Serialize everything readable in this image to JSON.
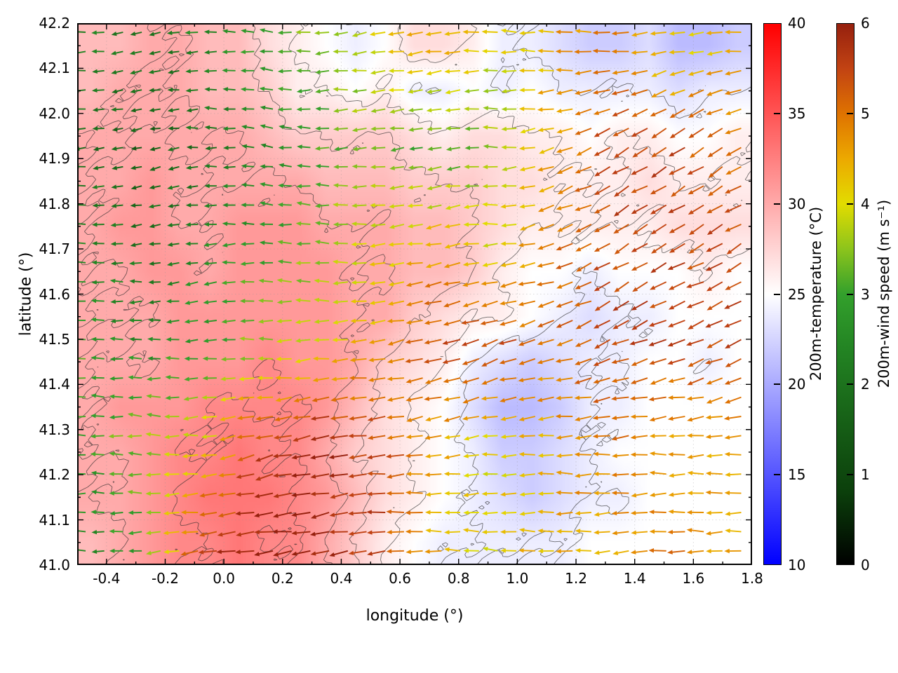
{
  "figure": {
    "background": "#ffffff",
    "title": ""
  },
  "axes": {
    "xlabel": "longitude (°)",
    "ylabel": "latitude (°)",
    "x_range": [
      -0.5,
      1.8
    ],
    "y_range": [
      41.0,
      42.2
    ],
    "x_tick_values": [
      -0.4,
      -0.2,
      0.0,
      0.2,
      0.4,
      0.6,
      0.8,
      1.0,
      1.2,
      1.4,
      1.6,
      1.8
    ],
    "x_tick_labels": [
      "-0.4",
      "-0.2",
      "0.0",
      "0.2",
      "0.4",
      "0.6",
      "0.8",
      "1.0",
      "1.2",
      "1.4",
      "1.6",
      "1.8"
    ],
    "y_tick_values": [
      41.0,
      41.1,
      41.2,
      41.3,
      41.4,
      41.5,
      41.6,
      41.7,
      41.8,
      41.9,
      42.0,
      42.1,
      42.2
    ],
    "y_tick_labels": [
      "41.0",
      "41.1",
      "41.2",
      "41.3",
      "41.4",
      "41.5",
      "41.6",
      "41.7",
      "41.8",
      "41.9",
      "42.0",
      "42.1",
      "42.2"
    ],
    "x_minor_step": 0.1,
    "y_minor_step": 0.05,
    "grid": true
  },
  "colorbars": [
    {
      "id": "temperature",
      "label": "200m-temperature (°C)",
      "units": "°C",
      "range": [
        10,
        40
      ],
      "ticks": [
        10,
        15,
        20,
        25,
        30,
        35,
        40
      ],
      "stops": [
        {
          "value": 10,
          "color": "#0000ff"
        },
        {
          "value": 25,
          "color": "#ffffff"
        },
        {
          "value": 40,
          "color": "#ff0000"
        }
      ]
    },
    {
      "id": "wind-speed",
      "label": "200m-wind speed (m s⁻¹)",
      "units": "m s⁻¹",
      "range": [
        0,
        6
      ],
      "ticks": [
        0,
        1,
        2,
        3,
        4,
        5,
        6
      ],
      "stops": [
        {
          "value": 0.0,
          "color": "#000000"
        },
        {
          "value": 0.8,
          "color": "#0b3f0b"
        },
        {
          "value": 1.6,
          "color": "#176117"
        },
        {
          "value": 2.4,
          "color": "#238423"
        },
        {
          "value": 3.0,
          "color": "#33a02c"
        },
        {
          "value": 3.5,
          "color": "#8cc41c"
        },
        {
          "value": 4.0,
          "color": "#e2dc00"
        },
        {
          "value": 4.5,
          "color": "#eca900"
        },
        {
          "value": 5.0,
          "color": "#df7300"
        },
        {
          "value": 5.5,
          "color": "#c24313"
        },
        {
          "value": 6.0,
          "color": "#96200e"
        }
      ]
    }
  ],
  "chart_data": {
    "type": "heatmap",
    "title": "",
    "xlabel": "longitude (°)",
    "ylabel": "latitude (°)",
    "x_range": [
      -0.5,
      1.8
    ],
    "y_range": [
      41.0,
      42.2
    ],
    "layers": [
      "200m temperature shaded field",
      "terrain/analysis contour lines",
      "200m wind vectors colored by speed"
    ],
    "contour_levels": [
      24,
      26,
      28,
      30,
      32
    ],
    "temperature_field": {
      "units": "°C",
      "lon_start": -0.45,
      "lon_step": 0.1,
      "lat_start": 42.15,
      "lat_step": -0.1,
      "values": [
        [
          29,
          29,
          30,
          30,
          29,
          29,
          27,
          26,
          25,
          24,
          25,
          27,
          27,
          26,
          24,
          24,
          23,
          22,
          22,
          23,
          21,
          21,
          22
        ],
        [
          29,
          30,
          30,
          30,
          29,
          29,
          28,
          26,
          26,
          25,
          26,
          24,
          24,
          25,
          24,
          25,
          24,
          24,
          24,
          24,
          23,
          24,
          24
        ],
        [
          30,
          30,
          30,
          30,
          30,
          30,
          29,
          28,
          28,
          28,
          28,
          27,
          26,
          27,
          27,
          26,
          26,
          25,
          26,
          26,
          25,
          25,
          26
        ],
        [
          30,
          30,
          31,
          30,
          30,
          30,
          30,
          30,
          29,
          29,
          29,
          28,
          28,
          28,
          27,
          27,
          26,
          26,
          26,
          27,
          26,
          26,
          26
        ],
        [
          30,
          31,
          31,
          30,
          30,
          31,
          31,
          31,
          30,
          30,
          30,
          29,
          29,
          28,
          27,
          26,
          26,
          26,
          26,
          26,
          27,
          27,
          27
        ],
        [
          30,
          30,
          31,
          31,
          30,
          31,
          31,
          31,
          31,
          30,
          30,
          29,
          29,
          28,
          26,
          25,
          25,
          24,
          25,
          25,
          25,
          26,
          25
        ],
        [
          30,
          30,
          30,
          31,
          31,
          31,
          31,
          31,
          31,
          30,
          30,
          28,
          27,
          26,
          26,
          25,
          24,
          23,
          24,
          24,
          25,
          25,
          25
        ],
        [
          30,
          30,
          30,
          31,
          31,
          31,
          32,
          31,
          31,
          30,
          28,
          27,
          26,
          24,
          23,
          22,
          23,
          24,
          24,
          25,
          25,
          24,
          25
        ],
        [
          30,
          31,
          31,
          31,
          32,
          32,
          32,
          32,
          31,
          29,
          27,
          26,
          25,
          23,
          21,
          21,
          22,
          24,
          24,
          25,
          25,
          25,
          25
        ],
        [
          30,
          30,
          31,
          32,
          32,
          33,
          32,
          32,
          30,
          28,
          27,
          26,
          25,
          24,
          22,
          22,
          23,
          24,
          25,
          25,
          25,
          25,
          25
        ],
        [
          30,
          30,
          31,
          32,
          33,
          33,
          33,
          32,
          31,
          29,
          27,
          26,
          25,
          24,
          23,
          22,
          23,
          24,
          24,
          25,
          25,
          25,
          25
        ],
        [
          29,
          30,
          31,
          32,
          32,
          33,
          32,
          32,
          30,
          28,
          26,
          25,
          24,
          24,
          24,
          24,
          24,
          25,
          25,
          25,
          25,
          25,
          25
        ]
      ]
    },
    "wind_field": {
      "units": "m s⁻¹",
      "direction_convention": "degrees, 0 = toward east, counterclockwise positive (arrows point downwind)",
      "lon_start": -0.45,
      "lon_step": 0.2,
      "lat_start": 42.15,
      "lat_step": -0.22,
      "speed": [
        [
          2.5,
          2.0,
          2.5,
          3.0,
          3.5,
          4.0,
          4.5,
          4.0,
          4.5,
          5.0,
          4.0,
          4.5
        ],
        [
          2.0,
          1.5,
          2.0,
          2.5,
          3.0,
          3.5,
          3.0,
          3.5,
          4.5,
          5.5,
          5.5,
          5.0
        ],
        [
          2.5,
          2.0,
          2.5,
          3.0,
          3.5,
          4.0,
          4.5,
          4.0,
          5.0,
          5.5,
          5.5,
          5.5
        ],
        [
          3.0,
          2.5,
          3.0,
          3.5,
          4.0,
          4.5,
          5.5,
          5.5,
          5.0,
          5.5,
          5.5,
          5.5
        ],
        [
          3.0,
          3.5,
          4.0,
          5.5,
          6.0,
          5.5,
          4.5,
          4.0,
          4.5,
          5.0,
          4.5,
          4.5
        ],
        [
          2.5,
          3.0,
          5.5,
          6.0,
          6.0,
          5.5,
          4.5,
          4.0,
          4.5,
          4.5,
          5.0,
          4.5
        ]
      ],
      "direction_deg": [
        [
          185,
          190,
          180,
          175,
          185,
          190,
          185,
          180,
          175,
          185,
          190,
          185
        ],
        [
          185,
          195,
          180,
          170,
          180,
          185,
          190,
          180,
          200,
          210,
          215,
          210
        ],
        [
          180,
          185,
          190,
          180,
          175,
          185,
          190,
          185,
          200,
          210,
          205,
          210
        ],
        [
          175,
          180,
          185,
          180,
          185,
          190,
          195,
          200,
          195,
          205,
          200,
          205
        ],
        [
          180,
          175,
          185,
          195,
          190,
          185,
          190,
          185,
          180,
          185,
          180,
          185
        ],
        [
          180,
          185,
          190,
          185,
          190,
          185,
          180,
          175,
          180,
          185,
          180,
          180
        ]
      ]
    }
  }
}
